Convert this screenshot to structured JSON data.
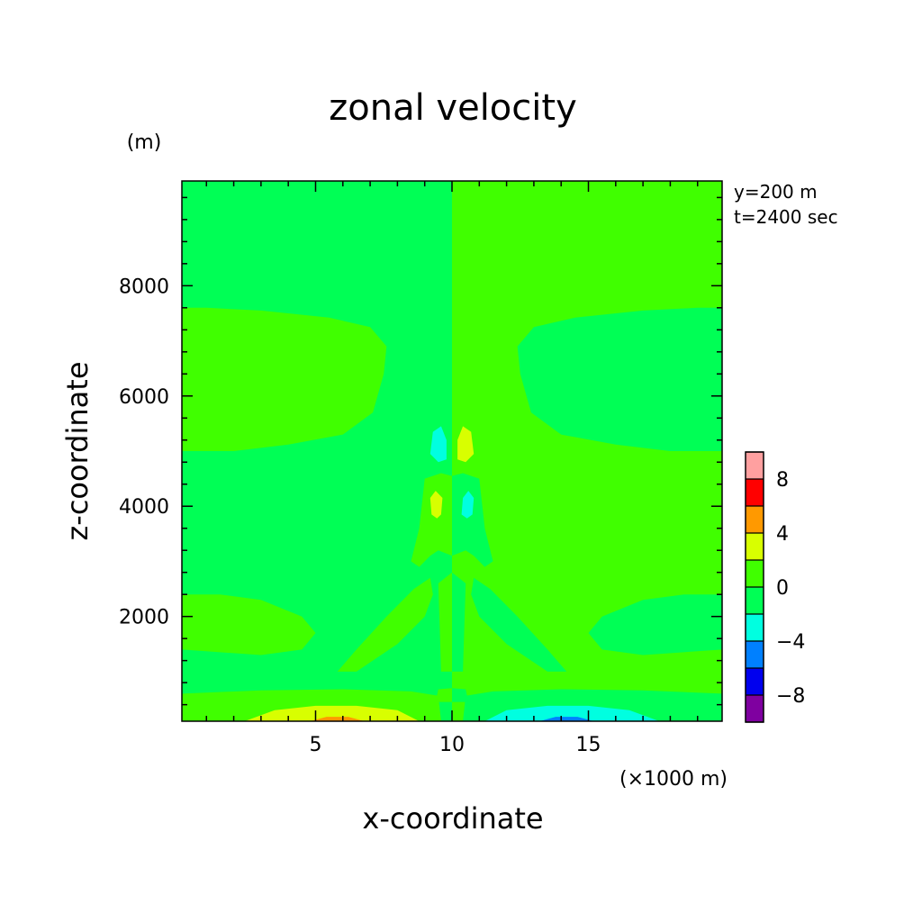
{
  "chart_data": {
    "type": "heatmap",
    "title": "zonal velocity",
    "xlabel": "x-coordinate",
    "ylabel": "z-coordinate",
    "x_unit": "(×1000 m)",
    "y_unit": "(m)",
    "xlim": [
      0.1,
      19.9
    ],
    "ylim": [
      100,
      9900
    ],
    "x_ticks": [
      5,
      10,
      15
    ],
    "y_ticks": [
      2000,
      4000,
      6000,
      8000
    ],
    "x_minor_step": 1,
    "y_minor_step": 400,
    "annotations": [
      "y=200 m",
      "t=2400 sec"
    ],
    "colorbar": {
      "levels": [
        -10,
        -8,
        -6,
        -4,
        -2,
        0,
        2,
        4,
        6,
        8,
        10
      ],
      "colors": [
        "#7f00a0",
        "#0000ee",
        "#0080ff",
        "#00ffe0",
        "#00ff55",
        "#40ff00",
        "#d8ff00",
        "#ff9900",
        "#ff0000",
        "#ffa0a0"
      ],
      "tick_labels": [
        "-8",
        "-4",
        "0",
        "4",
        "8"
      ],
      "tick_values": [
        -8,
        -4,
        0,
        4,
        8
      ]
    },
    "background_value": -1,
    "regions": [
      {
        "name": "right-half-positive",
        "value": 1,
        "polygon": [
          [
            10,
            100
          ],
          [
            19.9,
            100
          ],
          [
            19.9,
            9900
          ],
          [
            10,
            9900
          ]
        ]
      },
      {
        "name": "upper-left-positive-blob",
        "value": 1,
        "polygon": [
          [
            0.1,
            5000
          ],
          [
            0.1,
            7600
          ],
          [
            1,
            7600
          ],
          [
            3,
            7550
          ],
          [
            5.5,
            7420
          ],
          [
            7,
            7250
          ],
          [
            7.6,
            6900
          ],
          [
            7.5,
            6400
          ],
          [
            7.1,
            5700
          ],
          [
            6,
            5300
          ],
          [
            4,
            5120
          ],
          [
            2,
            5000
          ]
        ]
      },
      {
        "name": "upper-right-negative-blob",
        "value": -1,
        "polygon": [
          [
            19.9,
            5000
          ],
          [
            19.9,
            7600
          ],
          [
            19,
            7600
          ],
          [
            17,
            7550
          ],
          [
            14.5,
            7420
          ],
          [
            13,
            7250
          ],
          [
            12.4,
            6900
          ],
          [
            12.5,
            6400
          ],
          [
            12.9,
            5700
          ],
          [
            14,
            5300
          ],
          [
            16,
            5120
          ],
          [
            18,
            5000
          ]
        ]
      },
      {
        "name": "lower-left-positive-blob",
        "value": 1,
        "polygon": [
          [
            0.1,
            1400
          ],
          [
            0.1,
            2400
          ],
          [
            1.5,
            2400
          ],
          [
            3,
            2300
          ],
          [
            4.5,
            2000
          ],
          [
            5,
            1700
          ],
          [
            4.5,
            1400
          ],
          [
            3,
            1300
          ]
        ]
      },
      {
        "name": "lower-right-negative-blob",
        "value": -1,
        "polygon": [
          [
            19.9,
            1400
          ],
          [
            19.9,
            2400
          ],
          [
            18.5,
            2400
          ],
          [
            17,
            2300
          ],
          [
            15.5,
            2000
          ],
          [
            15,
            1700
          ],
          [
            15.5,
            1400
          ],
          [
            17,
            1300
          ]
        ]
      },
      {
        "name": "bottom-left-positive-band",
        "value": 1,
        "polygon": [
          [
            0.1,
            100
          ],
          [
            0.1,
            600
          ],
          [
            3,
            660
          ],
          [
            6,
            680
          ],
          [
            8.5,
            640
          ],
          [
            9.5,
            560
          ],
          [
            9.6,
            100
          ]
        ]
      },
      {
        "name": "bottom-right-negative-band",
        "value": -1,
        "polygon": [
          [
            19.9,
            100
          ],
          [
            19.9,
            600
          ],
          [
            17,
            660
          ],
          [
            14,
            680
          ],
          [
            11.5,
            640
          ],
          [
            10.5,
            560
          ],
          [
            10.4,
            100
          ]
        ]
      },
      {
        "name": "left-diagonal-positive-band",
        "value": 1,
        "polygon": [
          [
            5.8,
            1000
          ],
          [
            6.5,
            1000
          ],
          [
            8,
            1500
          ],
          [
            9,
            2000
          ],
          [
            9.3,
            2400
          ],
          [
            9.2,
            2700
          ],
          [
            8.6,
            2500
          ],
          [
            7.6,
            2000
          ],
          [
            6.5,
            1400
          ]
        ]
      },
      {
        "name": "right-diagonal-negative-band",
        "value": -1,
        "polygon": [
          [
            14.2,
            1000
          ],
          [
            13.5,
            1000
          ],
          [
            12,
            1500
          ],
          [
            11,
            2000
          ],
          [
            10.7,
            2400
          ],
          [
            10.8,
            2700
          ],
          [
            11.4,
            2500
          ],
          [
            12.4,
            2000
          ],
          [
            13.5,
            1400
          ]
        ]
      },
      {
        "name": "center-positive-column",
        "value": 1,
        "polygon": [
          [
            8.5,
            3000
          ],
          [
            8.8,
            3600
          ],
          [
            9,
            4500
          ],
          [
            9.6,
            4600
          ],
          [
            10,
            4550
          ],
          [
            10,
            3100
          ],
          [
            9.5,
            3200
          ],
          [
            9.2,
            3100
          ],
          [
            8.8,
            2900
          ]
        ]
      },
      {
        "name": "center-negative-column",
        "value": -1,
        "polygon": [
          [
            11.5,
            3000
          ],
          [
            11.2,
            3600
          ],
          [
            11,
            4500
          ],
          [
            10.4,
            4600
          ],
          [
            10,
            4550
          ],
          [
            10,
            3100
          ],
          [
            10.5,
            3200
          ],
          [
            10.8,
            3100
          ],
          [
            11.2,
            2900
          ]
        ]
      },
      {
        "name": "center-positive-stem",
        "value": 1,
        "polygon": [
          [
            9.6,
            1000
          ],
          [
            10,
            1000
          ],
          [
            10,
            2800
          ],
          [
            9.5,
            2600
          ]
        ]
      },
      {
        "name": "center-negative-stem",
        "value": -1,
        "polygon": [
          [
            10,
            1000
          ],
          [
            10.4,
            1000
          ],
          [
            10.5,
            2600
          ],
          [
            10,
            2800
          ]
        ]
      },
      {
        "name": "bottom-left-yellow-bump",
        "value": 3,
        "polygon": [
          [
            2.4,
            100
          ],
          [
            3.5,
            300
          ],
          [
            5,
            380
          ],
          [
            6.5,
            380
          ],
          [
            8,
            300
          ],
          [
            8.8,
            100
          ]
        ]
      },
      {
        "name": "bottom-left-orange-core",
        "value": 5,
        "polygon": [
          [
            4.8,
            100
          ],
          [
            5.4,
            180
          ],
          [
            6.2,
            180
          ],
          [
            6.8,
            100
          ]
        ]
      },
      {
        "name": "bottom-right-cyan-bump",
        "value": -3,
        "polygon": [
          [
            17.6,
            100
          ],
          [
            16.5,
            300
          ],
          [
            15,
            380
          ],
          [
            13.5,
            380
          ],
          [
            12,
            300
          ],
          [
            11.2,
            100
          ]
        ]
      },
      {
        "name": "bottom-right-blue-core",
        "value": -5,
        "polygon": [
          [
            15.2,
            100
          ],
          [
            14.6,
            180
          ],
          [
            13.8,
            180
          ],
          [
            13.2,
            100
          ]
        ]
      },
      {
        "name": "cell-cyan-upper",
        "value": -3,
        "polygon": [
          [
            9.2,
            4950
          ],
          [
            9.3,
            5350
          ],
          [
            9.6,
            5450
          ],
          [
            9.8,
            5200
          ],
          [
            9.8,
            4850
          ],
          [
            9.5,
            4800
          ]
        ]
      },
      {
        "name": "cell-yellow-upper",
        "value": 3,
        "polygon": [
          [
            10.2,
            4850
          ],
          [
            10.2,
            5200
          ],
          [
            10.4,
            5450
          ],
          [
            10.7,
            5350
          ],
          [
            10.8,
            4950
          ],
          [
            10.5,
            4800
          ]
        ]
      },
      {
        "name": "cell-yellow-lower",
        "value": 3,
        "polygon": [
          [
            9.25,
            3850
          ],
          [
            9.2,
            4150
          ],
          [
            9.4,
            4280
          ],
          [
            9.65,
            4150
          ],
          [
            9.6,
            3850
          ],
          [
            9.45,
            3780
          ]
        ]
      },
      {
        "name": "cell-cyan-lower",
        "value": -3,
        "polygon": [
          [
            10.35,
            3850
          ],
          [
            10.4,
            4150
          ],
          [
            10.6,
            4280
          ],
          [
            10.8,
            4150
          ],
          [
            10.75,
            3850
          ],
          [
            10.55,
            3780
          ]
        ]
      },
      {
        "name": "near-surface-positive-blob",
        "value": 1,
        "polygon": [
          [
            9.4,
            450
          ],
          [
            9.5,
            680
          ],
          [
            10,
            700
          ],
          [
            10,
            450
          ]
        ]
      },
      {
        "name": "near-surface-negative-blob",
        "value": -1,
        "polygon": [
          [
            10,
            450
          ],
          [
            10,
            700
          ],
          [
            10.5,
            680
          ],
          [
            10.6,
            450
          ]
        ]
      }
    ]
  }
}
